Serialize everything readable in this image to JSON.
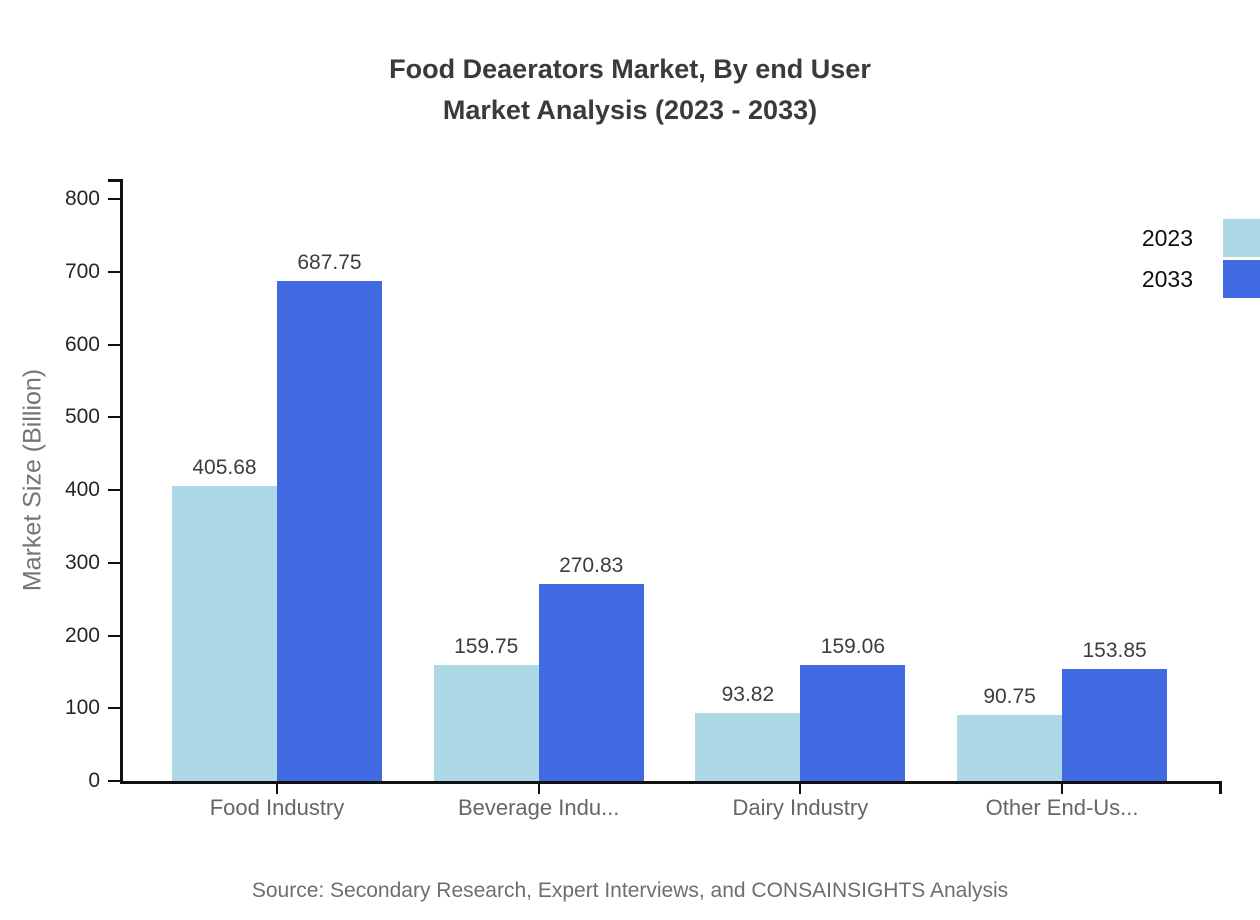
{
  "title": {
    "line1": "Food Deaerators Market, By end User",
    "line2": "Market Analysis (2023 - 2033)"
  },
  "source_note": "Source: Secondary Research, Expert Interviews, and CONSAINSIGHTS Analysis",
  "colors": {
    "series_2023": "#ADD8E6",
    "series_2033": "#4169E1",
    "axis": "#111111",
    "title_text": "#3a3a3a",
    "category_label_text": "#666666",
    "value_label_text": "#3d3d3d",
    "source_text": "#6e6e6e"
  },
  "chart_data": {
    "type": "bar",
    "title": "Food Deaerators Market, By end User Market Analysis (2023 - 2033)",
    "categories": [
      "Food Industry",
      "Beverage Indu...",
      "Dairy Industry",
      "Other End-Us..."
    ],
    "series": [
      {
        "name": "2023",
        "color": "#ADD8E6",
        "values": [
          405.68,
          159.75,
          93.82,
          90.75
        ]
      },
      {
        "name": "2033",
        "color": "#4169E1",
        "values": [
          687.75,
          270.83,
          159.06,
          153.85
        ]
      }
    ],
    "xlabel": "",
    "ylabel": "Market Size (Billion)",
    "ylim": [
      0,
      800
    ],
    "ytick_step": 100,
    "ytick_labels": [
      "0",
      "100",
      "200",
      "300",
      "400",
      "500",
      "600",
      "700",
      "800"
    ],
    "grid": false,
    "legend_position": "top-right",
    "value_labels": true,
    "value_label_decimals": 2
  }
}
